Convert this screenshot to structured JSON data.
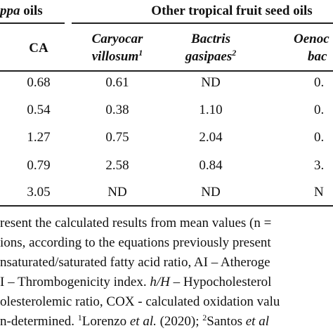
{
  "header": {
    "group_left": {
      "italic": "ppa",
      "rest": " oils"
    },
    "group_right": "Other tropical fruit seed oils"
  },
  "columns": [
    {
      "lines": [
        "CA"
      ]
    },
    {
      "lines": [
        "Caryocar",
        "villosum"
      ],
      "sup": "1"
    },
    {
      "lines": [
        "Bactris",
        "gasipaes"
      ],
      "sup": "2"
    },
    {
      "lines": [
        "Oenoc",
        "bac"
      ]
    }
  ],
  "rows": [
    [
      "0.68",
      "0.61",
      "ND",
      "0."
    ],
    [
      "0.54",
      "0.38",
      "1.10",
      "0."
    ],
    [
      "1.27",
      "0.75",
      "2.04",
      "0."
    ],
    [
      "0.79",
      "2.58",
      "0.84",
      "3."
    ],
    [
      "3.05",
      "ND",
      "ND",
      "N"
    ]
  ],
  "footnote": [
    [
      {
        "text": "resent the calculated results from mean values (n ="
      }
    ],
    [
      {
        "text": "ions, according to the equations previously present"
      }
    ],
    [
      {
        "text": "nsaturated/saturated fatty acid ratio, AI – Atheroge"
      }
    ],
    [
      {
        "text": "I – Thrombogenicity index. "
      },
      {
        "text": "h/H",
        "italic": true
      },
      {
        "text": " – Hypocholesterol"
      }
    ],
    [
      {
        "text": "olesterolemic ratio, COX - calculated oxidation valu"
      }
    ],
    [
      {
        "text": "n-determined. "
      },
      {
        "text": "1",
        "sup": true
      },
      {
        "text": "Lorenzo "
      },
      {
        "text": "et al.",
        "italic": true
      },
      {
        "text": " (2020); "
      },
      {
        "text": "2",
        "sup": true
      },
      {
        "text": "Santos "
      },
      {
        "text": "et al",
        "italic": true
      }
    ]
  ]
}
